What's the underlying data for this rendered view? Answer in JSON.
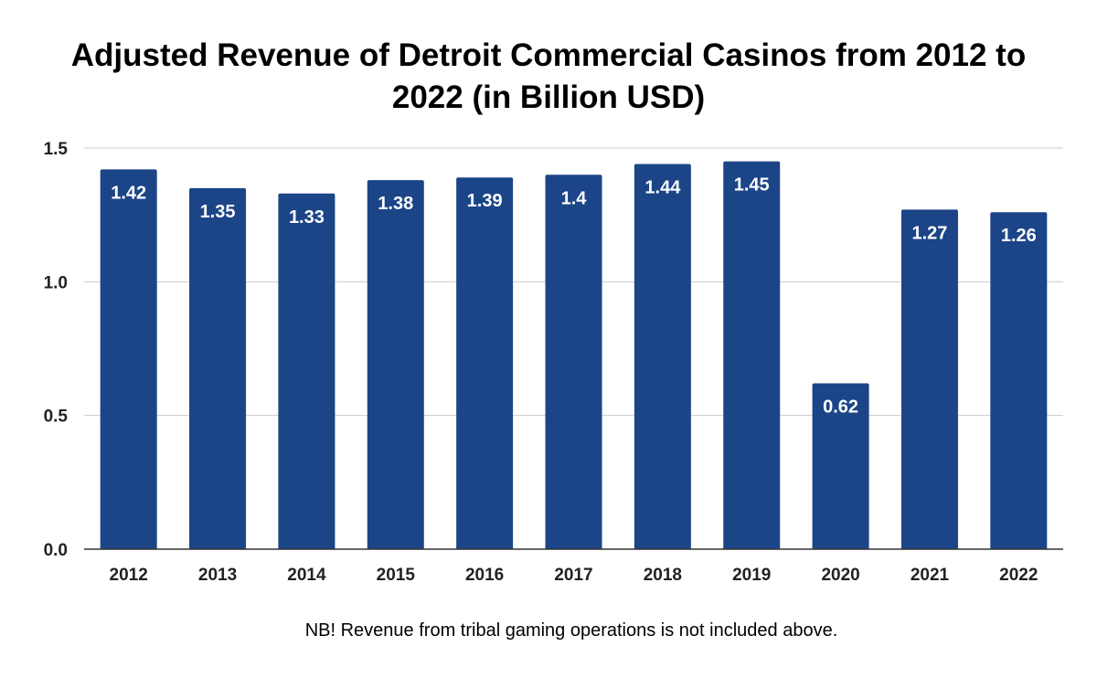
{
  "chart_data": {
    "type": "bar",
    "title": "Adjusted Revenue of Detroit Commercial Casinos from 2012 to 2022 (in Billion USD)",
    "categories": [
      "2012",
      "2013",
      "2014",
      "2015",
      "2016",
      "2017",
      "2018",
      "2019",
      "2020",
      "2021",
      "2022"
    ],
    "values": [
      1.42,
      1.35,
      1.33,
      1.38,
      1.39,
      1.4,
      1.44,
      1.45,
      0.62,
      1.27,
      1.26
    ],
    "data_labels": [
      "1.42",
      "1.35",
      "1.33",
      "1.38",
      "1.39",
      "1.4",
      "1.44",
      "1.45",
      "0.62",
      "1.27",
      "1.26"
    ],
    "y_ticks": [
      0,
      0.5,
      1.0,
      1.5
    ],
    "y_tick_labels": [
      "0.0",
      "0.5",
      "1.0",
      "1.5"
    ],
    "ylim": [
      0,
      1.5
    ],
    "xlabel": "",
    "ylabel": "",
    "grid": true,
    "legend": "none",
    "bar_color": "#1c4587"
  },
  "footnote": "NB! Revenue from tribal gaming operations is not included above."
}
